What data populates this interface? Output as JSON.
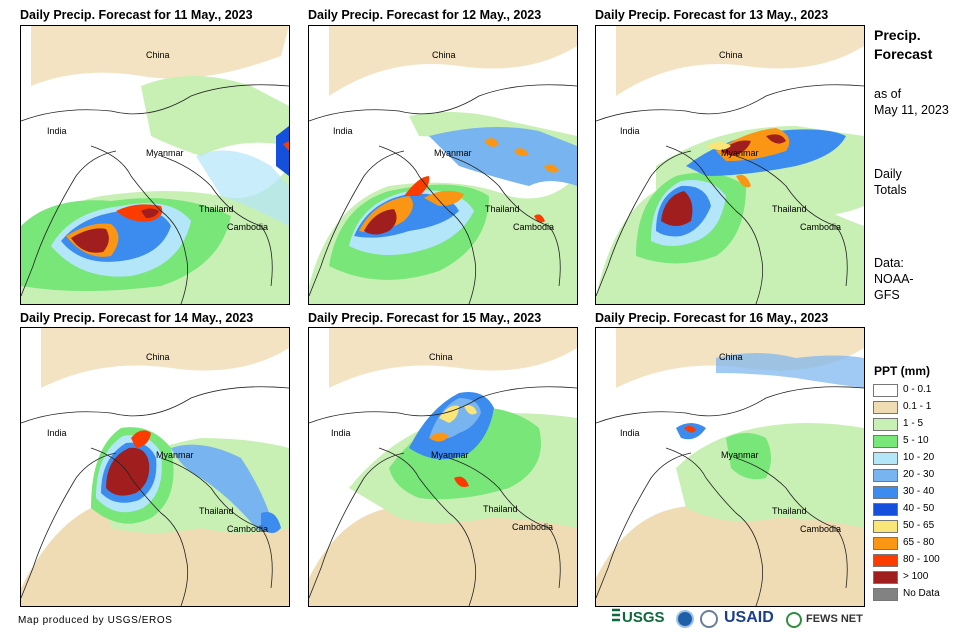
{
  "panels": [
    {
      "title": "Daily Precip. Forecast for 11 May., 2023"
    },
    {
      "title": "Daily Precip. Forecast for 12 May., 2023"
    },
    {
      "title": "Daily Precip. Forecast for 13 May., 2023"
    },
    {
      "title": "Daily Precip. Forecast for 14 May., 2023"
    },
    {
      "title": "Daily Precip. Forecast for 15 May., 2023"
    },
    {
      "title": "Daily Precip. Forecast for 16 May., 2023"
    }
  ],
  "map_labels": {
    "china": "China",
    "india": "India",
    "myanmar": "Myanmar",
    "thailand": "Thailand",
    "cambodia": "Cambodia"
  },
  "sidebar": {
    "title_line1": "Precip.",
    "title_line2": "Forecast",
    "asof_line1": "as of",
    "asof_line2": "May 11, 2023",
    "daily_line1": "Daily",
    "daily_line2": "Totals",
    "data_line1": "Data:",
    "data_line2": "NOAA-",
    "data_line3": "GFS"
  },
  "legend": {
    "title": "PPT (mm)",
    "items": [
      {
        "label": "0 - 0.1",
        "color": "#ffffff"
      },
      {
        "label": "0.1 - 1",
        "color": "#f0dcb4"
      },
      {
        "label": "1 - 5",
        "color": "#c8f0b4"
      },
      {
        "label": "5 - 10",
        "color": "#78e678"
      },
      {
        "label": "10 - 20",
        "color": "#b4e6fa"
      },
      {
        "label": "20 - 30",
        "color": "#78b4f0"
      },
      {
        "label": "30 - 40",
        "color": "#3c8cf0"
      },
      {
        "label": "40 - 50",
        "color": "#1450dc"
      },
      {
        "label": "50 - 65",
        "color": "#fae678"
      },
      {
        "label": "65 - 80",
        "color": "#fa9614"
      },
      {
        "label": "80 - 100",
        "color": "#fa3c00"
      },
      {
        "label": "> 100",
        "color": "#a01e1e"
      },
      {
        "label": "No Data",
        "color": "#828282"
      }
    ]
  },
  "footer": {
    "credit": "Map produced by USGS/EROS",
    "usgs": "USGS",
    "usaid": "USAID",
    "fewsnet": "FEWS NET"
  }
}
